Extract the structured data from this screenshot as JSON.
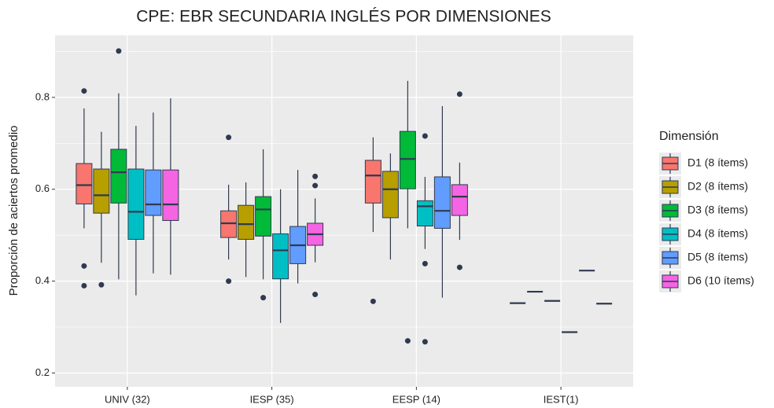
{
  "chart_data": {
    "type": "boxplot",
    "title": "CPE: EBR SECUNDARIA INGLÉS POR DIMENSIONES",
    "y_label": "Proporción de aciertos promedio",
    "legend_title": "Dimensión",
    "categories": [
      "UNIV (32)",
      "IESP (35)",
      "EESP (14)",
      "IEST(1)"
    ],
    "ylim": [
      0.17,
      0.935
    ],
    "yticks": [
      0.2,
      0.4,
      0.6,
      0.8
    ],
    "yminor": [
      0.3,
      0.5,
      0.7,
      0.9
    ],
    "grid": true,
    "series": [
      {
        "name": "D1 (8 ítems)",
        "color": "#F8766D",
        "min": [
          0.515,
          0.447,
          0.507,
          0.352
        ],
        "q1": [
          0.568,
          0.495,
          0.57,
          0.352
        ],
        "median": [
          0.609,
          0.526,
          0.63,
          0.352
        ],
        "q3": [
          0.656,
          0.553,
          0.663,
          0.352
        ],
        "max": [
          0.776,
          0.61,
          0.713,
          0.352
        ],
        "outliers": [
          [
            0.433,
            0.39,
            0.814
          ],
          [
            0.713,
            0.4
          ],
          [
            0.356
          ],
          []
        ]
      },
      {
        "name": "D2 (8 ítems)",
        "color": "#B79F00",
        "min": [
          0.44,
          0.409,
          0.447,
          0.377
        ],
        "q1": [
          0.548,
          0.491,
          0.538,
          0.377
        ],
        "median": [
          0.587,
          0.524,
          0.6,
          0.377
        ],
        "q3": [
          0.644,
          0.565,
          0.639,
          0.377
        ],
        "max": [
          0.725,
          0.615,
          0.678,
          0.377
        ],
        "outliers": [
          [
            0.392
          ],
          [],
          [],
          []
        ]
      },
      {
        "name": "D3 (8 ítems)",
        "color": "#00BA38",
        "min": [
          0.404,
          0.404,
          0.515,
          0.357
        ],
        "q1": [
          0.57,
          0.498,
          0.601,
          0.357
        ],
        "median": [
          0.637,
          0.556,
          0.666,
          0.357
        ],
        "q3": [
          0.687,
          0.584,
          0.726,
          0.357
        ],
        "max": [
          0.809,
          0.687,
          0.836,
          0.357
        ],
        "outliers": [
          [
            0.901
          ],
          [
            0.364
          ],
          [
            0.27
          ],
          []
        ]
      },
      {
        "name": "D4 (8 ítems)",
        "color": "#00BFC4",
        "min": [
          0.369,
          0.309,
          0.47,
          0.289
        ],
        "q1": [
          0.491,
          0.405,
          0.52,
          0.289
        ],
        "median": [
          0.551,
          0.467,
          0.563,
          0.289
        ],
        "q3": [
          0.644,
          0.503,
          0.575,
          0.289
        ],
        "max": [
          0.738,
          0.6,
          0.627,
          0.289
        ],
        "outliers": [
          [],
          [],
          [
            0.716,
            0.438,
            0.268
          ],
          []
        ]
      },
      {
        "name": "D5 (8 ítems)",
        "color": "#619CFF",
        "min": [
          0.417,
          0.395,
          0.364,
          0.423
        ],
        "q1": [
          0.543,
          0.438,
          0.515,
          0.423
        ],
        "median": [
          0.567,
          0.478,
          0.553,
          0.423
        ],
        "q3": [
          0.642,
          0.519,
          0.627,
          0.423
        ],
        "max": [
          0.767,
          0.642,
          0.781,
          0.423
        ],
        "outliers": [
          [],
          [],
          [],
          []
        ]
      },
      {
        "name": "D6 (10 ítems)",
        "color": "#F564E3",
        "min": [
          0.414,
          0.441,
          0.49,
          0.351
        ],
        "q1": [
          0.532,
          0.478,
          0.543,
          0.351
        ],
        "median": [
          0.567,
          0.502,
          0.584,
          0.351
        ],
        "q3": [
          0.642,
          0.526,
          0.61,
          0.351
        ],
        "max": [
          0.798,
          0.58,
          0.658,
          0.351
        ],
        "outliers": [
          [],
          [
            0.628,
            0.608,
            0.371
          ],
          [
            0.807,
            0.43
          ],
          []
        ]
      }
    ]
  }
}
